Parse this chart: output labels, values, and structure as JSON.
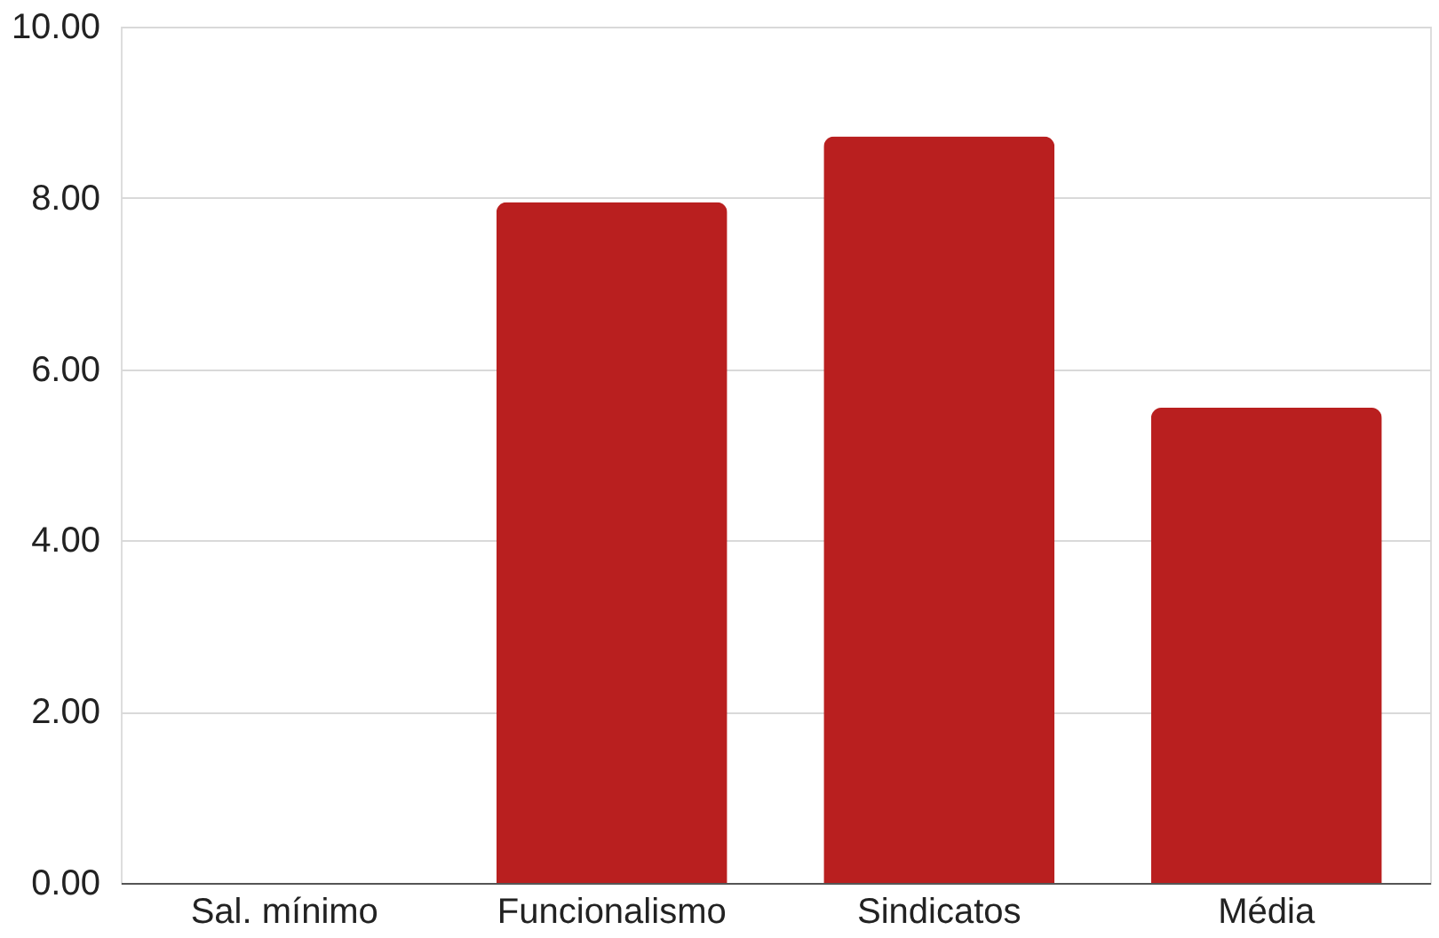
{
  "chart_data": {
    "type": "bar",
    "categories": [
      "Sal. mínimo",
      "Funcionalismo",
      "Sindicatos",
      "Média"
    ],
    "values": [
      0,
      7.95,
      8.72,
      5.55
    ],
    "color": "#b91f1f",
    "ylim": [
      0,
      10
    ],
    "yticks": [
      {
        "value": 0,
        "label": "0.00"
      },
      {
        "value": 2,
        "label": "2.00"
      },
      {
        "value": 4,
        "label": "4.00"
      },
      {
        "value": 6,
        "label": "6.00"
      },
      {
        "value": 8,
        "label": "8.00"
      },
      {
        "value": 10,
        "label": "10.00"
      }
    ],
    "grid": "y"
  }
}
